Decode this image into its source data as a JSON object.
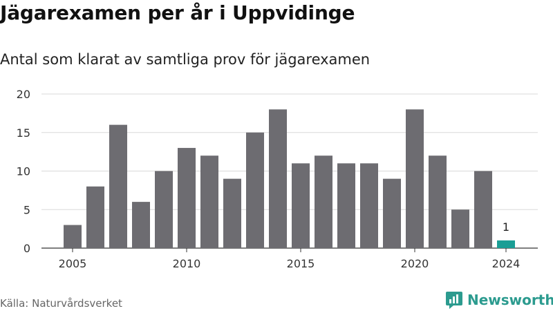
{
  "title": "Jägarexamen per år i Uppvidinge",
  "subtitle": "Antal som klarat av samtliga prov för jägarexamen",
  "source": "Källa: Naturvårdsverket",
  "brand": {
    "name": "Newsworthy",
    "color": "#2c9b8f",
    "icon": "newsworthy-logo-icon"
  },
  "chart_data": {
    "type": "bar",
    "x": [
      2005,
      2006,
      2007,
      2008,
      2009,
      2010,
      2011,
      2012,
      2013,
      2014,
      2015,
      2016,
      2017,
      2018,
      2019,
      2020,
      2021,
      2022,
      2023,
      2024
    ],
    "values": [
      3,
      8,
      16,
      6,
      10,
      13,
      12,
      9,
      15,
      18,
      11,
      12,
      11,
      11,
      9,
      18,
      12,
      5,
      10,
      1
    ],
    "x_ticks": [
      "2005",
      "2010",
      "2015",
      "2020",
      "2024"
    ],
    "y_ticks": [
      0,
      5,
      10,
      15,
      20
    ],
    "ylim": [
      0,
      20
    ],
    "grid": true,
    "bar_color": "#6d6c71",
    "highlight_color": "#1a9e95",
    "highlight": {
      "index": 19,
      "label": "1"
    }
  }
}
